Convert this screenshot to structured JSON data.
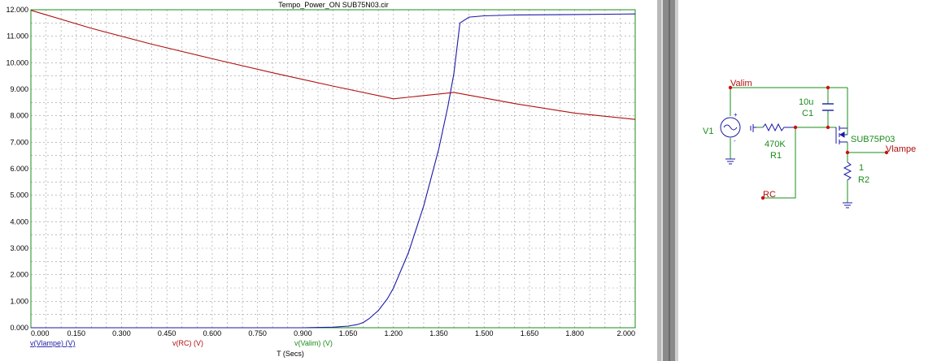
{
  "window": {
    "title": "Tempo_Power_ON SUB75N03.cir"
  },
  "chart_data": {
    "type": "line",
    "title": "Tempo_Power_ON SUB75N03.cir",
    "xlabel": "T (Secs)",
    "ylabel": "",
    "xlim": [
      0,
      2.0
    ],
    "ylim": [
      0,
      12.0
    ],
    "grid": true,
    "x_ticks": [
      "0.000",
      "0.150",
      "0.300",
      "0.450",
      "0.600",
      "0.750",
      "0.900",
      "1.050",
      "1.200",
      "1.350",
      "1.500",
      "1.650",
      "1.800",
      "2.000"
    ],
    "y_ticks": [
      "0.000",
      "1.000",
      "2.000",
      "3.000",
      "4.000",
      "5.000",
      "6.000",
      "7.000",
      "8.000",
      "9.000",
      "10.000",
      "11.000",
      "12.000"
    ],
    "series": [
      {
        "name": "v(Vlampe) (V)",
        "color": "#1a1aa6",
        "x": [
          0,
          0.9,
          1.0,
          1.05,
          1.08,
          1.1,
          1.12,
          1.15,
          1.18,
          1.2,
          1.25,
          1.3,
          1.35,
          1.38,
          1.4,
          1.42,
          1.45,
          1.5,
          1.6,
          1.8,
          2.0
        ],
        "y": [
          0,
          0,
          0.02,
          0.06,
          0.12,
          0.2,
          0.35,
          0.65,
          1.1,
          1.5,
          2.85,
          4.6,
          6.75,
          8.35,
          9.6,
          11.5,
          11.72,
          11.77,
          11.8,
          11.82,
          11.84
        ]
      },
      {
        "name": "v(RC) (V)",
        "color": "#b01010",
        "x": [
          0,
          0.2,
          0.4,
          0.6,
          0.8,
          1.0,
          1.2,
          1.4,
          1.6,
          1.8,
          2.0
        ],
        "y": [
          11.98,
          11.3,
          10.7,
          10.15,
          9.62,
          9.12,
          8.64,
          8.88,
          8.46,
          8.1,
          7.86
        ]
      },
      {
        "name": "v(Valim) (V)",
        "color": "#1a8c1a",
        "x": [
          0,
          2.0
        ],
        "y": [
          12.0,
          12.0
        ]
      }
    ]
  },
  "schematic": {
    "labels": {
      "valim": "Valim",
      "c1_value": "10u",
      "c1_name": "C1",
      "v1_name": "V1",
      "r1_value": "470K",
      "r1_name": "R1",
      "mosfet_name": "SUB75P03",
      "vlampe": "Vlampe",
      "r2_value": "1",
      "r2_name": "R2",
      "rc": "RC"
    }
  }
}
